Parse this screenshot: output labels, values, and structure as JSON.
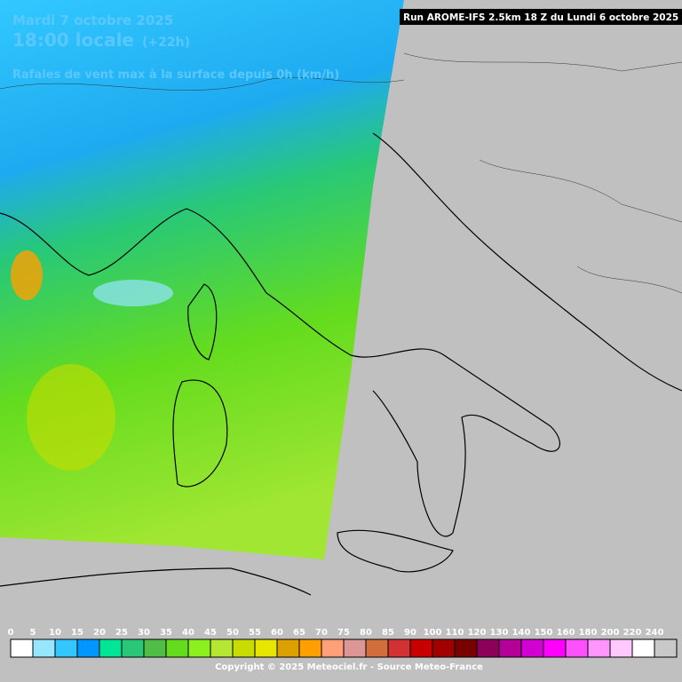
{
  "header": {
    "date": "Mardi 7 octobre 2025",
    "time": "18:00 locale",
    "lead": "(+22h)",
    "parameter": "Rafales de vent max à la surface depuis 0h (km/h)",
    "run": "Run AROME-IFS 2.5km 18 Z du Lundi 6 octobre 2025"
  },
  "legend": {
    "ticks": [
      0,
      5,
      10,
      15,
      20,
      25,
      30,
      35,
      40,
      45,
      50,
      55,
      60,
      65,
      70,
      75,
      80,
      85,
      90,
      100,
      110,
      120,
      130,
      140,
      150,
      160,
      180,
      200,
      220,
      240
    ],
    "colors": [
      "#ffffff",
      "#96e6ff",
      "#32c8ff",
      "#0096ff",
      "#00e696",
      "#28c878",
      "#50be46",
      "#64dc1e",
      "#8cf01e",
      "#b4e632",
      "#c8dc00",
      "#e6e600",
      "#dca000",
      "#ffa000",
      "#ffa078",
      "#dc9696",
      "#d26e3c",
      "#d23232",
      "#c80000",
      "#a00000",
      "#780000",
      "#8c005a",
      "#b40096",
      "#d200d2",
      "#ff00ff",
      "#ff50ff",
      "#ff96ff",
      "#ffc8ff",
      "#ffffff",
      "#c8c8c8"
    ]
  },
  "footer": "Copyright © 2025 Meteociel.fr - Source Meteo-France"
}
